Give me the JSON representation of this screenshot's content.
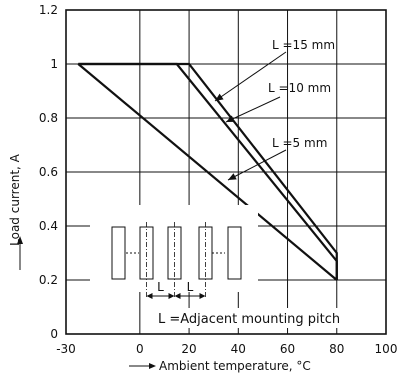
{
  "chart_data": {
    "type": "line",
    "xlabel": "Ambient temperature, °C",
    "ylabel": "Load current, A",
    "xlim": [
      -30,
      100
    ],
    "ylim": [
      0,
      1.2
    ],
    "x_ticks": [
      -30,
      0,
      20,
      40,
      60,
      80,
      100
    ],
    "y_ticks": [
      0,
      0.2,
      0.4,
      0.6,
      0.8,
      1,
      1.2
    ],
    "grid": true,
    "series": [
      {
        "name": "L =15 mm",
        "x": [
          -25,
          20,
          80,
          80
        ],
        "y": [
          1,
          1,
          0.3,
          0.2
        ]
      },
      {
        "name": "L =10 mm",
        "x": [
          -25,
          15,
          80,
          80
        ],
        "y": [
          1,
          1,
          0.27,
          0.2
        ]
      },
      {
        "name": "L =5 mm",
        "x": [
          -25,
          80
        ],
        "y": [
          1,
          0.2
        ]
      }
    ],
    "callouts": [
      "L =15 mm",
      "L =10 mm",
      "L =5 mm"
    ],
    "annotations": {
      "pitch_label": "L",
      "note": "L =Adjacent mounting pitch"
    }
  }
}
